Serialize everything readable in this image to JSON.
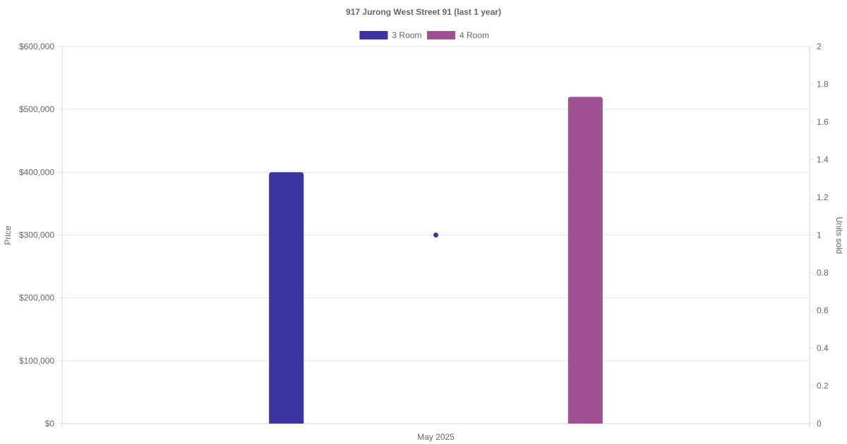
{
  "chart_data": {
    "type": "bar",
    "title": "917 Jurong West Street 91 (last 1 year)",
    "categories": [
      "May 2025"
    ],
    "series": [
      {
        "name": "3 Room",
        "values": [
          400000
        ],
        "color": "#3A35A1"
      },
      {
        "name": "4 Room",
        "values": [
          520000
        ],
        "color": "#A15096"
      }
    ],
    "overlay_series": [
      {
        "type": "scatter",
        "axis": "right",
        "values": [
          1
        ],
        "color": "#3A35A1"
      }
    ],
    "ylabel": "Price",
    "ylim": [
      0,
      600000
    ],
    "y_ticks": [
      "$0",
      "$100,000",
      "$200,000",
      "$300,000",
      "$400,000",
      "$500,000",
      "$600,000"
    ],
    "y2label": "Units sold",
    "y2lim": [
      0,
      2
    ],
    "y2_ticks": [
      "0",
      "0.2",
      "0.4",
      "0.6",
      "0.8",
      "1",
      "1.2",
      "1.4",
      "1.6",
      "1.8",
      "2"
    ],
    "grid": true,
    "legend_position": "top"
  }
}
